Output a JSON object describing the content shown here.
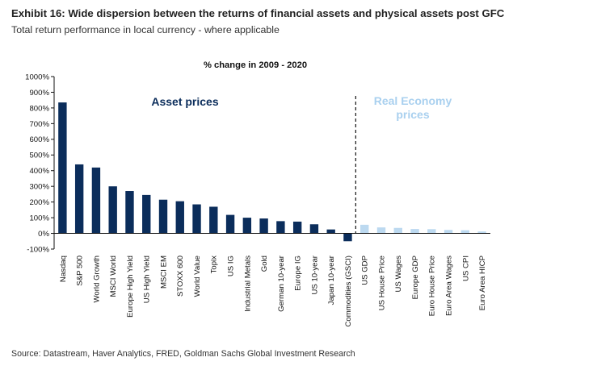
{
  "header": {
    "title": "Exhibit 16: Wide dispersion between the returns of financial assets and physical assets post GFC",
    "subtitle": "Total return performance in local currency - where applicable"
  },
  "footer": {
    "source": "Source: Datastream, Haver Analytics, FRED, Goldman Sachs Global Investment Research"
  },
  "colors": {
    "asset_bar": "#0b2d5b",
    "economy_bar": "#bcd9f0",
    "economy_text": "#a9d0ef",
    "asset_text": "#0b2d5b"
  },
  "chart_data": {
    "type": "bar",
    "title": "% change in 2009 - 2020",
    "xlabel": "",
    "ylabel": "",
    "ylim": [
      -100,
      1000
    ],
    "yticks": [
      -100,
      0,
      100,
      200,
      300,
      400,
      500,
      600,
      700,
      800,
      900,
      1000
    ],
    "y_tick_labels": [
      "-100%",
      "0%",
      "100%",
      "200%",
      "300%",
      "400%",
      "500%",
      "600%",
      "700%",
      "800%",
      "900%",
      "1000%"
    ],
    "grid": false,
    "categories": [
      "Nasdaq",
      "S&P 500",
      "World Growth",
      "MSCI World",
      "Europe High Yield",
      "US High Yield",
      "MSCI EM",
      "STOXX 600",
      "World Value",
      "Topix",
      "US IG",
      "Industrial Metals",
      "Gold",
      "German 10-year",
      "Europe IG",
      "US 10-year",
      "Japan 10-year",
      "Commodities (GSCI)",
      "US GDP",
      "US House Price",
      "US Wages",
      "Europe GDP",
      "Euro House Price",
      "Euro Area Wages",
      "US CPI",
      "Euro Area HICP"
    ],
    "values": [
      835,
      440,
      420,
      300,
      270,
      245,
      215,
      205,
      185,
      170,
      118,
      100,
      95,
      78,
      75,
      58,
      25,
      -50,
      55,
      38,
      35,
      28,
      27,
      22,
      20,
      12
    ],
    "groups": [
      "asset",
      "asset",
      "asset",
      "asset",
      "asset",
      "asset",
      "asset",
      "asset",
      "asset",
      "asset",
      "asset",
      "asset",
      "asset",
      "asset",
      "asset",
      "asset",
      "asset",
      "asset",
      "economy",
      "economy",
      "economy",
      "economy",
      "economy",
      "economy",
      "economy",
      "economy"
    ],
    "annotations": {
      "asset_label": "Asset prices",
      "economy_label_line1": "Real Economy",
      "economy_label_line2": "prices"
    },
    "divider_after_category": "Commodities (GSCI)"
  }
}
